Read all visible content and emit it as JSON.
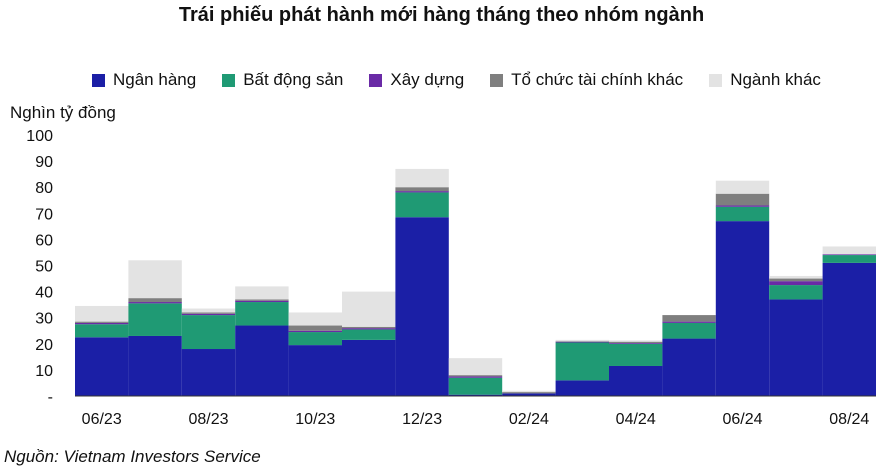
{
  "title": "Trái phiếu phát hành mới hàng tháng theo nhóm ngành",
  "y_unit": "Nghìn tỷ đồng",
  "source": "Nguồn: Vietnam Investors Service",
  "chart_data": {
    "type": "bar",
    "stacked": true,
    "categories": [
      "06/23",
      "07/23",
      "08/23",
      "09/23",
      "10/23",
      "11/23",
      "12/23",
      "01/24",
      "02/24",
      "03/24",
      "04/24",
      "05/24",
      "06/24",
      "07/24",
      "08/24"
    ],
    "x_tick_labels": [
      "06/23",
      "",
      "08/23",
      "",
      "10/23",
      "",
      "12/23",
      "",
      "02/24",
      "",
      "04/24",
      "",
      "06/24",
      "",
      "08/24"
    ],
    "y_tick_labels": [
      "-",
      "10",
      "20",
      "30",
      "40",
      "50",
      "60",
      "70",
      "80",
      "90",
      "100"
    ],
    "ylim": [
      0,
      100
    ],
    "grid": false,
    "legend_position": "top",
    "series": [
      {
        "name": "Ngân hàng",
        "color": "#1b1fa6",
        "values": [
          22.5,
          23.0,
          18.0,
          27.0,
          19.5,
          21.5,
          68.5,
          0.5,
          1.0,
          6.0,
          11.5,
          22.0,
          67.0,
          37.0,
          51.0
        ]
      },
      {
        "name": "Bất động sản",
        "color": "#1f9a74",
        "values": [
          5.0,
          12.5,
          13.0,
          9.0,
          5.0,
          4.0,
          9.5,
          6.5,
          0.0,
          14.5,
          8.5,
          6.0,
          5.5,
          5.5,
          3.0
        ]
      },
      {
        "name": "Xây dựng",
        "color": "#6a2aa6",
        "values": [
          0.5,
          0.5,
          0.5,
          0.5,
          0.5,
          0.5,
          0.5,
          0.5,
          0.0,
          0.3,
          0.3,
          0.5,
          0.5,
          1.5,
          0.3
        ]
      },
      {
        "name": "Tổ chức tài chính khác",
        "color": "#7f7f7f",
        "values": [
          0.5,
          1.5,
          0.5,
          0.5,
          2.0,
          0.5,
          1.5,
          0.5,
          0.5,
          0.2,
          0.5,
          2.5,
          4.5,
          1.0,
          0.0
        ]
      },
      {
        "name": "Ngành khác",
        "color": "#e3e3e3",
        "values": [
          6.0,
          14.5,
          1.5,
          5.0,
          5.0,
          13.5,
          7.0,
          6.5,
          0.5,
          0.5,
          0.5,
          0.0,
          5.0,
          1.0,
          3.0
        ]
      }
    ]
  }
}
